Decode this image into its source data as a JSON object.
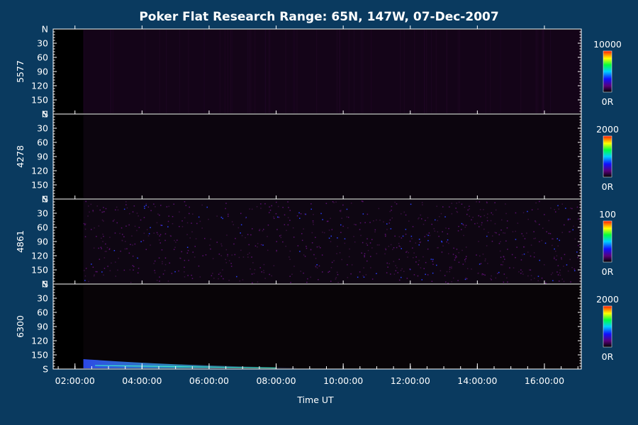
{
  "chart_data": {
    "type": "heatmap",
    "title": "Poker Flat Research Range: 65N, 147W, 07-Dec-2007",
    "xlabel": "Time UT",
    "x_ticks": [
      "02:00:00",
      "04:00:00",
      "06:00:00",
      "08:00:00",
      "10:00:00",
      "12:00:00",
      "14:00:00",
      "16:00:00"
    ],
    "y_ticks": [
      "N",
      "30",
      "60",
      "90",
      "120",
      "150",
      "S"
    ],
    "panels": [
      {
        "wavelength": "5577",
        "scale_max": "10000",
        "scale_min": "0R"
      },
      {
        "wavelength": "4278",
        "scale_max": "2000",
        "scale_min": "0R"
      },
      {
        "wavelength": "4861",
        "scale_max": "100",
        "scale_min": "0R"
      },
      {
        "wavelength": "6300",
        "scale_max": "2000",
        "scale_min": "0R"
      }
    ],
    "colors": {
      "background": "#0a3a5f",
      "plot": "#000000",
      "axis": "#ffffff"
    }
  }
}
